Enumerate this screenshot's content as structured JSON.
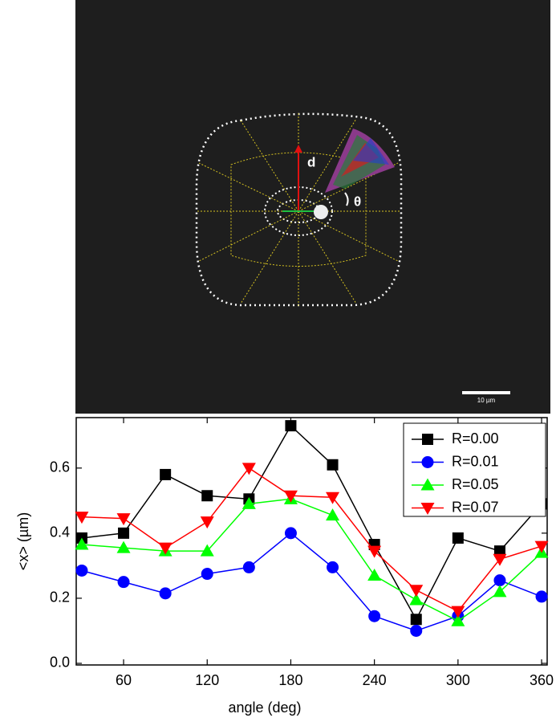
{
  "image": {
    "labels": [
      "d",
      "θ"
    ],
    "scale_bar": "10 µm"
  },
  "chart_data": {
    "type": "line",
    "x": [
      30,
      60,
      90,
      120,
      150,
      180,
      210,
      240,
      270,
      300,
      330,
      360
    ],
    "series": [
      {
        "name": "R=0.00",
        "color": "#000000",
        "marker": "square",
        "values": [
          0.385,
          0.4,
          0.58,
          0.515,
          0.505,
          0.73,
          0.61,
          0.365,
          0.135,
          0.385,
          0.345,
          0.49
        ]
      },
      {
        "name": "R=0.01",
        "color": "#0000ff",
        "marker": "circle",
        "values": [
          0.285,
          0.25,
          0.215,
          0.275,
          0.295,
          0.4,
          0.295,
          0.145,
          0.1,
          0.145,
          0.255,
          0.205
        ]
      },
      {
        "name": "R=0.05",
        "color": "#00ff00",
        "marker": "triangle-up",
        "values": [
          0.365,
          0.355,
          0.345,
          0.345,
          0.49,
          0.505,
          0.455,
          0.27,
          0.195,
          0.13,
          0.22,
          0.34
        ]
      },
      {
        "name": "R=0.07",
        "color": "#ff0000",
        "marker": "triangle-down",
        "values": [
          0.45,
          0.445,
          0.355,
          0.435,
          0.6,
          0.515,
          0.51,
          0.345,
          0.225,
          0.16,
          0.32,
          0.36
        ]
      }
    ],
    "xlabel": "angle (deg)",
    "ylabel": "<x> (µm)",
    "xlim": [
      26,
      364
    ],
    "ylim": [
      -0.005,
      0.755
    ],
    "xticks": [
      60,
      120,
      180,
      240,
      300,
      360
    ],
    "yticks": [
      {
        "value": 0,
        "label": "0.0"
      },
      0.2,
      0.4,
      0.6
    ],
    "legend": "upper right"
  }
}
